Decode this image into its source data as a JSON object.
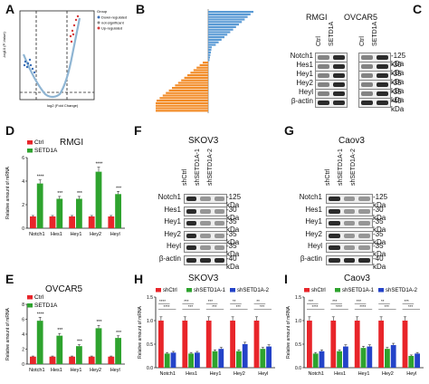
{
  "panels": {
    "A": {
      "label": "A",
      "legend": {
        "title": "Group",
        "items": [
          "Down-regulated",
          "not-significant",
          "Up-regulated"
        ]
      },
      "xlabel": "log2 (Fold Change)",
      "ylabel": "-log10 (P-Value)"
    },
    "B": {
      "label": "B"
    },
    "C": {
      "label": "C",
      "cell_lines": [
        "RMGI",
        "OVCAR5"
      ],
      "lanes": [
        "Ctrl",
        "SETD1A"
      ],
      "proteins": [
        "Notch1",
        "Hes1",
        "Hey1",
        "Hey2",
        "Heyl",
        "β-actin"
      ],
      "kda": [
        "-125 kDa",
        "-30 kDa",
        "-35 kDa",
        "-35 kDa",
        "-35 kDa",
        "-40 kDa"
      ]
    },
    "D": {
      "label": "D",
      "title": "RMGI"
    },
    "E": {
      "label": "E",
      "title": "OVCAR5"
    },
    "F": {
      "label": "F",
      "title": "SKOV3",
      "lanes": [
        "shCtrl",
        "shSETD1A-1",
        "shSETD1A-2"
      ],
      "proteins": [
        "Notch1",
        "Hes1",
        "Hey1",
        "Hey2",
        "Heyl",
        "β-actin"
      ],
      "kda": [
        "-125 kDa",
        "-30 kDa",
        "-35 kDa",
        "-35 kDa",
        "-35 kDa",
        "-40 kDa"
      ]
    },
    "G": {
      "label": "G",
      "title": "Caov3",
      "lanes": [
        "shCtrl",
        "shSETD1A-1",
        "shSETD1A-2"
      ],
      "proteins": [
        "Notch1",
        "Hes1",
        "Hey1",
        "Hey2",
        "Heyl",
        "β-actin"
      ],
      "kda": [
        "-125 kDa",
        "-30 kDa",
        "-35 kDa",
        "-35 kDa",
        "-35 kDa",
        "-40 kDa"
      ]
    },
    "H": {
      "label": "H",
      "title": "SKOV3"
    },
    "I": {
      "label": "I",
      "title": "Caov3"
    }
  },
  "colors": {
    "ctrl": "#e8252a",
    "setd1a": "#2ea32e",
    "sh1": "#2ea32e",
    "sh2": "#2443c8"
  },
  "chart_data": [
    {
      "id": "D",
      "type": "bar",
      "title": "RMGI",
      "ylabel": "Relative amount of mRNA",
      "ylim": [
        0,
        6
      ],
      "categories": [
        "Notch1",
        "Hes1",
        "Hey1",
        "Hey2",
        "Heyl"
      ],
      "series": [
        {
          "name": "Ctrl",
          "values": [
            1,
            1,
            1,
            1,
            1
          ]
        },
        {
          "name": "SETD1A",
          "values": [
            3.8,
            2.5,
            2.5,
            4.8,
            2.9
          ]
        }
      ],
      "annotations": [
        "****",
        "***",
        "***",
        "****",
        "***"
      ]
    },
    {
      "id": "E",
      "type": "bar",
      "title": "OVCAR5",
      "ylabel": "Relative amount of mRNA",
      "ylim": [
        0,
        8
      ],
      "categories": [
        "Notch1",
        "Hes1",
        "Hey1",
        "Hey2",
        "Heyl"
      ],
      "series": [
        {
          "name": "Ctrl",
          "values": [
            1,
            1,
            1,
            1,
            1
          ]
        },
        {
          "name": "SETD1A",
          "values": [
            5.8,
            3.8,
            2.4,
            4.8,
            3.5
          ]
        }
      ],
      "annotations": [
        "****",
        "***",
        "***",
        "***",
        "***"
      ]
    },
    {
      "id": "H",
      "type": "bar",
      "title": "SKOV3",
      "ylabel": "Relative amount of mRNA",
      "ylim": [
        0,
        1.5
      ],
      "categories": [
        "Notch1",
        "Hes1",
        "Hey1",
        "Hey2",
        "Heyl"
      ],
      "series": [
        {
          "name": "shCtrl",
          "values": [
            1,
            1,
            1,
            1,
            1
          ]
        },
        {
          "name": "shSETD1A-1",
          "values": [
            0.3,
            0.3,
            0.35,
            0.35,
            0.4
          ]
        },
        {
          "name": "shSETD1A-2",
          "values": [
            0.32,
            0.32,
            0.4,
            0.5,
            0.45
          ]
        }
      ],
      "annotations": [
        [
          "****",
          "****"
        ],
        [
          "***",
          "***"
        ],
        [
          "***",
          "***"
        ],
        [
          "**",
          "***"
        ],
        [
          "**",
          "***"
        ]
      ]
    },
    {
      "id": "I",
      "type": "bar",
      "title": "Caov3",
      "ylabel": "Relative amount of mRNA",
      "ylim": [
        0,
        1.5
      ],
      "categories": [
        "Notch1",
        "Hes1",
        "Hey1",
        "Hey2",
        "Heyl"
      ],
      "series": [
        {
          "name": "shCtrl",
          "values": [
            1,
            1,
            1,
            1,
            1
          ]
        },
        {
          "name": "shSETD1A-1",
          "values": [
            0.3,
            0.35,
            0.42,
            0.4,
            0.25
          ]
        },
        {
          "name": "shSETD1A-2",
          "values": [
            0.35,
            0.45,
            0.45,
            0.48,
            0.3
          ]
        }
      ],
      "annotations": [
        [
          "***",
          "****"
        ],
        [
          "***",
          "****"
        ],
        [
          "***",
          "****"
        ],
        [
          "**",
          "***"
        ],
        [
          "***",
          "***"
        ]
      ]
    }
  ]
}
